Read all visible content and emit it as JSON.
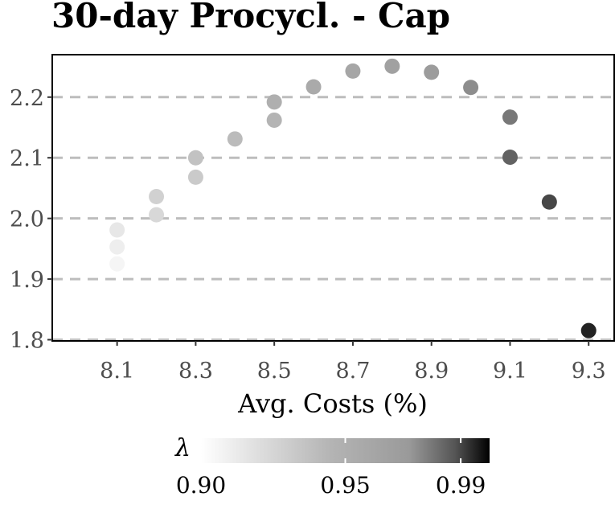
{
  "chart_data": {
    "type": "scatter",
    "title": "30-day Procycl. - Cap",
    "xlabel": "Avg. Costs (%)",
    "ylabel": "",
    "xlim": [
      7.935,
      9.365
    ],
    "ylim": [
      1.798,
      2.27
    ],
    "x_ticks": [
      8.1,
      8.3,
      8.5,
      8.7,
      8.9,
      9.1,
      9.3
    ],
    "x_tick_labels": [
      "8.1",
      "8.3",
      "8.5",
      "8.7",
      "8.9",
      "9.1",
      "9.3"
    ],
    "y_ticks": [
      1.8,
      1.9,
      2.0,
      2.1,
      2.2
    ],
    "y_tick_labels": [
      "1.8",
      "1.9",
      "2.0",
      "2.1",
      "2.2"
    ],
    "grid": "horizontal dashed",
    "legend": {
      "title": "λ",
      "placement": "bottom",
      "range": [
        0.9,
        1.0
      ],
      "tick_values": [
        0.9,
        0.95,
        0.99
      ],
      "tick_labels": [
        "0.90",
        "0.95",
        "0.99"
      ],
      "colors": [
        "#f5f5f5",
        "#b4b4b4",
        "#a0a0a0",
        "#000000"
      ]
    },
    "points": [
      {
        "x": 8.1,
        "y": 1.925,
        "lambda": 0.9
      },
      {
        "x": 8.1,
        "y": 1.953,
        "lambda": 0.905
      },
      {
        "x": 8.1,
        "y": 1.981,
        "lambda": 0.91
      },
      {
        "x": 8.2,
        "y": 2.006,
        "lambda": 0.92
      },
      {
        "x": 8.2,
        "y": 2.036,
        "lambda": 0.925
      },
      {
        "x": 8.3,
        "y": 2.068,
        "lambda": 0.93
      },
      {
        "x": 8.3,
        "y": 2.1,
        "lambda": 0.935
      },
      {
        "x": 8.4,
        "y": 2.131,
        "lambda": 0.94
      },
      {
        "x": 8.5,
        "y": 2.162,
        "lambda": 0.945
      },
      {
        "x": 8.5,
        "y": 2.192,
        "lambda": 0.95
      },
      {
        "x": 8.6,
        "y": 2.217,
        "lambda": 0.955
      },
      {
        "x": 8.7,
        "y": 2.243,
        "lambda": 0.96
      },
      {
        "x": 8.8,
        "y": 2.251,
        "lambda": 0.965
      },
      {
        "x": 8.9,
        "y": 2.241,
        "lambda": 0.97
      },
      {
        "x": 9.0,
        "y": 2.216,
        "lambda": 0.975
      },
      {
        "x": 9.1,
        "y": 2.167,
        "lambda": 0.98
      },
      {
        "x": 9.1,
        "y": 2.101,
        "lambda": 0.985
      },
      {
        "x": 9.2,
        "y": 2.027,
        "lambda": 0.99
      },
      {
        "x": 9.3,
        "y": 1.815,
        "lambda": 0.995
      }
    ]
  }
}
